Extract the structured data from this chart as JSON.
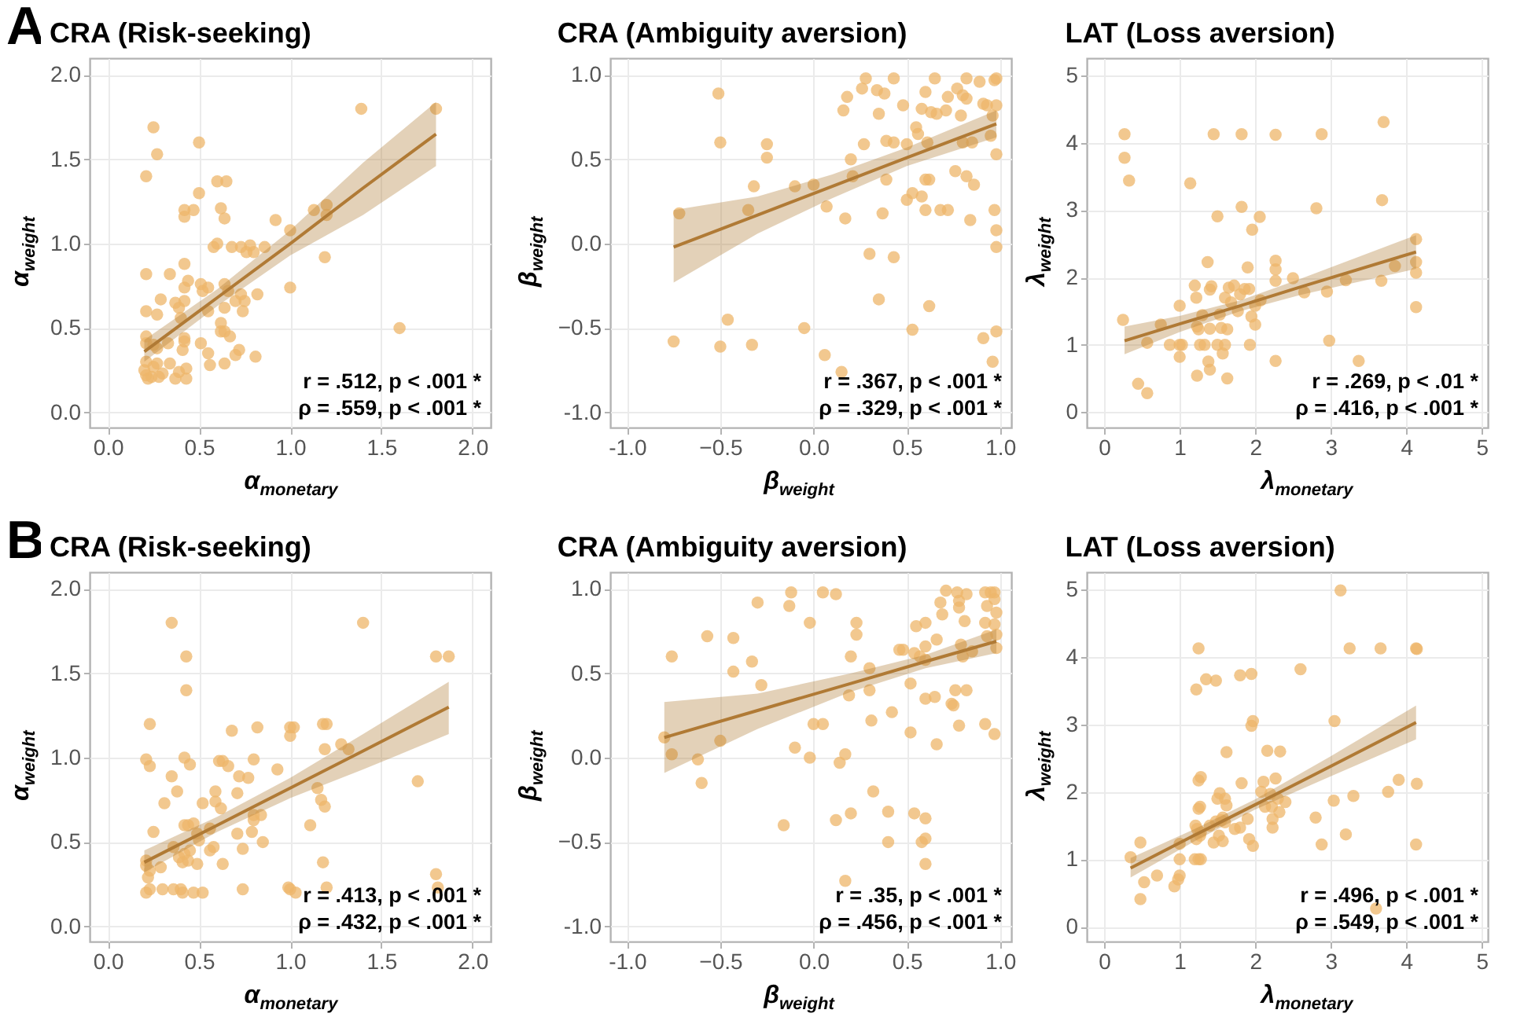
{
  "chart_data": [
    {
      "type": "scatter",
      "title": "CRA (Risk-seeking)",
      "xlabel": "α$_{monetary}$",
      "ylabel": "α$_{weight}$",
      "annotations": [
        "A",
        "r = .512, p < .001 *",
        "ρ = .559, p < .001 *"
      ],
      "xlim": [
        -0.1,
        2.1
      ],
      "ylim": [
        -0.09,
        2.1
      ],
      "xticks": [
        {
          "value": 0,
          "label": "0.0"
        },
        0.5,
        {
          "value": 1,
          "label": "1.0"
        },
        1.5,
        {
          "value": 2,
          "label": "2.0"
        }
      ],
      "yticks": [
        {
          "value": 0,
          "label": "0.0"
        },
        0.5,
        {
          "value": 1,
          "label": "1.0"
        },
        1.5,
        {
          "value": 2,
          "label": "2.0"
        }
      ],
      "grid": true,
      "marker": "circle",
      "series": [
        {
          "type": "scatter",
          "color": "#eeb56a",
          "x": [
            0.25,
            0.27,
            0.21,
            0.5,
            0.6,
            0.65,
            0.5,
            0.42,
            0.47,
            0.62,
            0.42,
            0.64,
            1.39,
            1.8,
            1.13,
            1.2,
            1.2,
            0.92,
            1.0,
            0.58,
            0.6,
            0.68,
            0.73,
            0.78,
            0.86,
            0.76,
            0.8,
            1.19,
            0.21,
            0.34,
            0.42,
            0.44,
            0.42,
            0.51,
            0.52,
            0.55,
            0.64,
            0.66,
            0.73,
            0.75,
            0.82,
            1.0,
            0.29,
            0.37,
            0.42,
            0.39,
            0.21,
            0.27,
            0.4,
            0.55,
            0.62,
            0.64,
            0.7,
            0.74,
            0.62,
            0.64,
            0.67,
            0.21,
            0.21,
            0.25,
            0.27,
            0.33,
            0.42,
            0.42,
            0.51,
            0.41,
            0.72,
            0.7,
            0.81,
            0.55,
            0.21,
            0.25,
            0.27,
            0.34,
            0.43,
            0.39,
            0.56,
            0.64,
            0.21,
            0.22,
            0.24,
            0.28,
            0.37,
            0.43,
            1.6,
            0.2,
            0.3
          ],
          "values": [
            1.69,
            1.53,
            1.4,
            1.6,
            1.37,
            1.37,
            1.3,
            1.2,
            1.2,
            1.21,
            1.16,
            1.15,
            1.8,
            1.8,
            1.2,
            1.23,
            1.17,
            1.14,
            1.08,
            0.98,
            1.0,
            0.98,
            0.98,
            0.99,
            0.98,
            0.95,
            0.95,
            0.92,
            0.82,
            0.82,
            0.88,
            0.78,
            0.74,
            0.76,
            0.72,
            0.74,
            0.76,
            0.72,
            0.7,
            0.66,
            0.7,
            0.74,
            0.67,
            0.65,
            0.66,
            0.62,
            0.6,
            0.58,
            0.56,
            0.6,
            0.53,
            0.62,
            0.66,
            0.6,
            0.48,
            0.48,
            0.45,
            0.45,
            0.41,
            0.4,
            0.38,
            0.41,
            0.44,
            0.42,
            0.41,
            0.37,
            0.37,
            0.34,
            0.33,
            0.35,
            0.3,
            0.27,
            0.29,
            0.29,
            0.26,
            0.24,
            0.28,
            0.29,
            0.22,
            0.2,
            0.21,
            0.21,
            0.2,
            0.2,
            0.5,
            0.25,
            0.23
          ]
        },
        {
          "type": "line",
          "color": "#b07a35",
          "marker": "none",
          "x": [
            0.2,
            0.6,
            1.0,
            1.4,
            1.8
          ],
          "values": [
            0.36,
            0.68,
            1.0,
            1.33,
            1.65
          ],
          "lower": [
            0.3,
            0.63,
            0.93,
            1.17,
            1.46
          ],
          "upper": [
            0.43,
            0.73,
            1.08,
            1.48,
            1.84
          ]
        }
      ]
    },
    {
      "type": "scatter",
      "title": "CRA (Ambiguity aversion)",
      "xlabel": "β$_{weight}$",
      "ylabel": "β$_{weight}$",
      "annotations": [
        "r = .367, p < .001 *",
        "ρ = .329, p < .001 *"
      ],
      "xlim": [
        -1.09,
        1.06
      ],
      "ylim": [
        -1.09,
        1.1
      ],
      "xticks": [
        {
          "value": -1,
          "label": "-1.0"
        },
        -0.5,
        {
          "value": 0,
          "label": "0.0"
        },
        0.5,
        {
          "value": 1,
          "label": "1.0"
        }
      ],
      "yticks": [
        {
          "value": -1,
          "label": "-1.0"
        },
        -0.5,
        {
          "value": 0,
          "label": "0.0"
        },
        0.5,
        {
          "value": 1,
          "label": "1.0"
        }
      ],
      "grid": true,
      "marker": "circle",
      "series": [
        {
          "type": "scatter",
          "color": "#eeb56a",
          "x": [
            -0.72,
            -0.75,
            -0.51,
            -0.5,
            -0.5,
            -0.46,
            -0.35,
            -0.32,
            -0.33,
            -0.25,
            -0.25,
            -0.1,
            -0.05,
            0.0,
            0.07,
            0.06,
            0.15,
            0.17,
            0.18,
            0.2,
            0.21,
            0.16,
            0.26,
            0.28,
            0.27,
            0.3,
            0.34,
            0.35,
            0.38,
            0.39,
            0.37,
            0.39,
            0.35,
            0.43,
            0.43,
            0.43,
            0.48,
            0.5,
            0.5,
            0.53,
            0.53,
            0.55,
            0.56,
            0.58,
            0.6,
            0.61,
            0.62,
            0.6,
            0.58,
            0.6,
            0.62,
            0.63,
            0.65,
            0.66,
            0.68,
            0.72,
            0.71,
            0.72,
            0.76,
            0.77,
            0.79,
            0.8,
            0.8,
            0.82,
            0.82,
            0.82,
            0.84,
            0.86,
            0.85,
            0.89,
            0.91,
            0.93,
            0.95,
            0.96,
            0.97,
            0.98,
            0.97,
            0.98,
            0.98,
            0.98,
            0.98,
            0.91,
            0.98,
            0.96
          ],
          "values": [
            0.18,
            -0.58,
            0.89,
            0.6,
            -0.61,
            -0.45,
            0.2,
            0.34,
            -0.6,
            0.59,
            0.51,
            0.34,
            -0.5,
            0.35,
            0.22,
            -0.66,
            -0.76,
            0.15,
            0.87,
            0.5,
            0.4,
            0.79,
            0.92,
            0.98,
            0.59,
            -0.06,
            0.91,
            0.77,
            0.89,
            0.61,
            0.18,
            0.38,
            -0.33,
            0.98,
            0.6,
            -0.08,
            0.82,
            0.59,
            0.26,
            0.3,
            -0.51,
            0.69,
            0.65,
            0.8,
            0.9,
            0.6,
            0.38,
            0.38,
            0.28,
            0.2,
            -0.37,
            0.78,
            0.98,
            0.77,
            0.2,
            0.2,
            0.79,
            0.87,
            0.43,
            0.92,
            0.76,
            0.88,
            0.6,
            0.98,
            0.86,
            0.4,
            0.14,
            0.35,
            0.6,
            0.96,
            0.83,
            0.82,
            0.64,
            0.76,
            0.97,
            0.98,
            0.2,
            0.08,
            -0.02,
            0.53,
            0.82,
            -0.56,
            -0.52,
            -0.7
          ]
        },
        {
          "type": "line",
          "color": "#b07a35",
          "marker": "none",
          "x": [
            -0.75,
            -0.3,
            0.1,
            0.5,
            0.98
          ],
          "values": [
            -0.02,
            0.17,
            0.34,
            0.51,
            0.71
          ],
          "lower": [
            -0.23,
            0.06,
            0.27,
            0.46,
            0.63
          ],
          "upper": [
            0.2,
            0.28,
            0.41,
            0.57,
            0.79
          ]
        }
      ]
    },
    {
      "type": "scatter",
      "title": "LAT (Loss aversion)",
      "xlabel": "λ$_{monetary}$",
      "ylabel": "λ$_{weight}$",
      "annotations": [
        "r = .269, p < .01 *",
        "ρ = .416, p < .001 *"
      ],
      "xlim": [
        -0.23,
        5.08
      ],
      "ylim": [
        -0.23,
        5.26
      ],
      "xticks": [
        0,
        1,
        2,
        3,
        4,
        5
      ],
      "yticks": [
        0,
        1,
        2,
        3,
        4,
        5
      ],
      "grid": true,
      "marker": "circle",
      "series": [
        {
          "type": "scatter",
          "color": "#eeb56a",
          "x": [
            0.27,
            0.27,
            0.33,
            1.45,
            1.82,
            2.27,
            2.88,
            3.7,
            1.14,
            1.5,
            1.82,
            2.06,
            2.81,
            3.68,
            1.96,
            0.25,
            0.57,
            0.75,
            0.87,
            1.0,
            1.0,
            1.03,
            1.0,
            1.2,
            1.22,
            1.23,
            1.25,
            1.27,
            1.3,
            1.33,
            1.37,
            1.4,
            1.42,
            1.4,
            1.38,
            1.4,
            1.23,
            1.5,
            1.55,
            1.53,
            1.6,
            1.57,
            1.63,
            1.65,
            1.68,
            1.72,
            1.77,
            1.8,
            1.86,
            1.9,
            1.92,
            1.95,
            1.93,
            2.0,
            2.0,
            2.07,
            2.27,
            2.27,
            2.27,
            2.27,
            2.5,
            2.65,
            2.95,
            2.98,
            3.2,
            3.37,
            3.67,
            3.85,
            4.13,
            4.13,
            4.13,
            4.13,
            0.45,
            0.57,
            1.63,
            1.6
          ],
          "values": [
            4.13,
            3.78,
            3.44,
            4.13,
            4.13,
            4.12,
            4.13,
            4.31,
            3.4,
            2.91,
            3.05,
            2.9,
            3.03,
            3.15,
            2.71,
            1.37,
            1.03,
            1.3,
            1.0,
            1.58,
            1.0,
            1.0,
            0.82,
            1.88,
            1.7,
            1.27,
            1.23,
            1.0,
            1.44,
            1.0,
            2.23,
            1.82,
            1.87,
            1.24,
            0.75,
            0.63,
            0.54,
            1.0,
            1.25,
            1.45,
            1.7,
            0.87,
            1.23,
            1.85,
            1.63,
            1.88,
            1.5,
            1.75,
            1.83,
            2.15,
            1.83,
            1.42,
            1.0,
            1.3,
            1.58,
            1.66,
            2.25,
            2.12,
            1.95,
            0.76,
            1.99,
            1.78,
            1.79,
            1.06,
            1.96,
            0.76,
            1.95,
            2.17,
            2.57,
            2.23,
            2.07,
            1.56,
            0.42,
            0.28,
            0.5,
            1.0
          ]
        },
        {
          "type": "line",
          "color": "#b07a35",
          "marker": "none",
          "x": [
            0.27,
            1.0,
            1.8,
            2.6,
            4.13
          ],
          "values": [
            1.06,
            1.31,
            1.58,
            1.86,
            2.38
          ],
          "lower": [
            0.86,
            1.19,
            1.5,
            1.74,
            2.13
          ],
          "upper": [
            1.27,
            1.43,
            1.66,
            1.98,
            2.63
          ]
        }
      ]
    },
    {
      "type": "scatter",
      "title": "CRA (Risk-seeking)",
      "xlabel": "α$_{monetary}$",
      "ylabel": "α$_{weight}$",
      "annotations": [
        "B",
        "r = .413, p < .001 *",
        "ρ = .432, p < .001 *"
      ],
      "xlim": [
        -0.1,
        2.1
      ],
      "ylim": [
        -0.09,
        2.1
      ],
      "xticks": [
        {
          "value": 0,
          "label": "0.0"
        },
        0.5,
        {
          "value": 1,
          "label": "1.0"
        },
        1.5,
        {
          "value": 2,
          "label": "2.0"
        }
      ],
      "yticks": [
        {
          "value": 0,
          "label": "0.0"
        },
        0.5,
        {
          "value": 1,
          "label": "1.0"
        },
        1.5,
        {
          "value": 2,
          "label": "2.0"
        }
      ],
      "grid": true,
      "marker": "circle",
      "series": [
        {
          "type": "scatter",
          "color": "#eeb56a",
          "x": [
            0.35,
            1.4,
            0.43,
            1.8,
            1.87,
            0.43,
            0.23,
            0.68,
            0.82,
            1.0,
            1.02,
            1.18,
            1.2,
            1.0,
            1.28,
            1.32,
            1.19,
            0.21,
            0.23,
            0.42,
            0.45,
            0.61,
            0.63,
            0.66,
            0.8,
            0.93,
            0.35,
            0.72,
            0.77,
            0.38,
            0.31,
            0.52,
            0.59,
            0.59,
            0.62,
            0.71,
            0.8,
            0.8,
            0.84,
            1.15,
            1.17,
            1.19,
            1.7,
            0.25,
            0.42,
            0.44,
            0.47,
            0.49,
            0.56,
            0.71,
            0.79,
            1.11,
            0.36,
            0.39,
            0.42,
            0.41,
            0.44,
            0.45,
            0.5,
            0.56,
            0.58,
            0.74,
            0.85,
            0.63,
            0.49,
            0.21,
            0.21,
            0.22,
            0.23,
            0.29,
            1.18,
            1.8,
            0.21,
            0.23,
            0.3,
            0.36,
            0.41,
            0.4,
            0.47,
            0.52,
            0.74,
            0.99,
            1.0,
            1.03,
            1.2,
            1.81
          ],
          "values": [
            1.8,
            1.8,
            1.6,
            1.6,
            1.6,
            1.4,
            1.2,
            1.16,
            1.18,
            1.18,
            1.18,
            1.2,
            1.2,
            1.13,
            1.08,
            1.05,
            1.05,
            0.99,
            0.95,
            1.0,
            0.96,
            0.98,
            0.98,
            0.95,
            0.99,
            0.93,
            0.89,
            0.89,
            0.88,
            0.8,
            0.73,
            0.73,
            0.8,
            0.74,
            0.7,
            0.79,
            0.66,
            0.63,
            0.66,
            0.82,
            0.75,
            0.71,
            0.86,
            0.56,
            0.6,
            0.6,
            0.61,
            0.55,
            0.58,
            0.55,
            0.56,
            0.6,
            0.47,
            0.41,
            0.43,
            0.38,
            0.39,
            0.45,
            0.51,
            0.45,
            0.47,
            0.46,
            0.5,
            0.37,
            0.37,
            0.39,
            0.36,
            0.29,
            0.33,
            0.35,
            0.38,
            0.31,
            0.2,
            0.22,
            0.22,
            0.22,
            0.2,
            0.22,
            0.2,
            0.2,
            0.22,
            0.23,
            0.22,
            0.2,
            0.23,
            0.23
          ]
        },
        {
          "type": "line",
          "color": "#b07a35",
          "marker": "none",
          "x": [
            0.2,
            0.6,
            1.0,
            1.4,
            1.87
          ],
          "values": [
            0.38,
            0.6,
            0.82,
            1.04,
            1.3
          ],
          "lower": [
            0.32,
            0.56,
            0.76,
            0.93,
            1.14
          ],
          "upper": [
            0.45,
            0.65,
            0.88,
            1.14,
            1.45
          ]
        }
      ]
    },
    {
      "type": "scatter",
      "title": "CRA (Ambiguity aversion)",
      "xlabel": "β$_{weight}$",
      "ylabel": "β$_{weight}$",
      "annotations": [
        "r = .35, p < .001 *",
        "ρ = .456, p < .001 *"
      ],
      "xlim": [
        -1.09,
        1.06
      ],
      "ylim": [
        -1.09,
        1.1
      ],
      "xticks": [
        {
          "value": -1,
          "label": "-1.0"
        },
        -0.5,
        {
          "value": 0,
          "label": "0.0"
        },
        0.5,
        {
          "value": 1,
          "label": "1.0"
        }
      ],
      "yticks": [
        {
          "value": -1,
          "label": "-1.0"
        },
        -0.5,
        {
          "value": 0,
          "label": "0.0"
        },
        0.5,
        {
          "value": 1,
          "label": "1.0"
        }
      ],
      "grid": true,
      "marker": "circle",
      "series": [
        {
          "type": "scatter",
          "color": "#eeb56a",
          "x": [
            -0.76,
            -0.8,
            -0.76,
            -0.62,
            -0.6,
            -0.57,
            -0.5,
            -0.43,
            -0.43,
            -0.33,
            -0.3,
            -0.28,
            -0.16,
            -0.13,
            -0.12,
            -0.1,
            -0.02,
            -0.02,
            0.0,
            0.05,
            0.05,
            0.12,
            0.12,
            0.14,
            0.17,
            0.17,
            0.2,
            0.19,
            0.2,
            0.23,
            0.23,
            0.3,
            0.3,
            0.31,
            0.32,
            0.4,
            0.4,
            0.42,
            0.46,
            0.48,
            0.52,
            0.52,
            0.54,
            0.54,
            0.55,
            0.57,
            0.58,
            0.6,
            0.6,
            0.6,
            0.6,
            0.6,
            0.6,
            0.6,
            0.65,
            0.66,
            0.66,
            0.68,
            0.69,
            0.71,
            0.77,
            0.74,
            0.75,
            0.78,
            0.78,
            0.76,
            0.82,
            0.78,
            0.79,
            0.8,
            0.81,
            0.82,
            0.85,
            0.92,
            0.92,
            0.93,
            0.93,
            0.92,
            0.95,
            0.97,
            0.97,
            0.98,
            0.97,
            0.98,
            0.98,
            0.97
          ],
          "values": [
            0.6,
            0.12,
            0.02,
            -0.01,
            -0.15,
            0.72,
            0.1,
            0.71,
            0.51,
            0.57,
            0.92,
            0.43,
            -0.4,
            0.9,
            0.98,
            0.06,
            0.8,
            0.0,
            0.2,
            0.98,
            0.2,
            0.97,
            -0.37,
            -0.03,
            0.02,
            -0.73,
            0.6,
            0.37,
            -0.33,
            0.8,
            0.73,
            0.53,
            0.4,
            0.22,
            -0.2,
            -0.32,
            -0.5,
            0.27,
            0.64,
            0.64,
            0.44,
            0.15,
            0.62,
            -0.33,
            0.78,
            0.6,
            -0.5,
            0.8,
            0.66,
            0.58,
            0.35,
            -0.36,
            -0.48,
            -0.63,
            0.36,
            0.7,
            0.08,
            0.92,
            0.85,
            0.99,
            0.98,
            0.32,
            0.31,
            0.93,
            0.89,
            0.4,
            0.4,
            0.19,
            0.67,
            0.6,
            0.81,
            0.97,
            0.63,
            0.98,
            0.8,
            0.9,
            0.72,
            0.2,
            0.98,
            0.98,
            0.94,
            0.86,
            0.79,
            0.73,
            0.65,
            0.14
          ]
        },
        {
          "type": "line",
          "color": "#b07a35",
          "marker": "none",
          "x": [
            -0.8,
            -0.3,
            0.2,
            0.6,
            0.98
          ],
          "values": [
            0.12,
            0.28,
            0.44,
            0.57,
            0.69
          ],
          "lower": [
            -0.09,
            0.17,
            0.39,
            0.53,
            0.62
          ],
          "upper": [
            0.33,
            0.38,
            0.5,
            0.61,
            0.76
          ]
        }
      ]
    },
    {
      "type": "scatter",
      "title": "LAT (Loss aversion)",
      "xlabel": "λ$_{monetary}$",
      "ylabel": "λ$_{weight}$",
      "annotations": [
        "r = .496, p < .001 *",
        "ρ = .549, p < .001 *"
      ],
      "xlim": [
        -0.23,
        5.08
      ],
      "ylim": [
        -0.22,
        5.26
      ],
      "xticks": [
        0,
        1,
        2,
        3,
        4,
        5
      ],
      "yticks": [
        0,
        1,
        2,
        3,
        4,
        5
      ],
      "grid": true,
      "marker": "circle",
      "series": [
        {
          "type": "scatter",
          "color": "#eeb56a",
          "x": [
            3.13,
            1.25,
            3.25,
            3.66,
            4.13,
            4.14,
            1.22,
            1.35,
            1.48,
            1.8,
            1.95,
            2.6,
            1.95,
            1.97,
            3.05,
            1.62,
            2.16,
            2.33,
            1.25,
            1.28,
            1.82,
            2.08,
            2.11,
            2.27,
            3.9,
            4.14,
            1.27,
            1.25,
            1.5,
            1.53,
            1.6,
            1.62,
            2.13,
            2.2,
            2.22,
            2.3,
            2.4,
            2.32,
            3.04,
            3.3,
            3.76,
            1.21,
            1.23,
            1.28,
            1.4,
            1.48,
            1.55,
            1.57,
            1.6,
            1.73,
            1.8,
            1.9,
            2.23,
            2.23,
            2.8,
            3.2,
            1.22,
            1.27,
            1.45,
            1.52,
            1.57,
            1.92,
            1.97,
            2.88,
            4.13,
            0.35,
            0.48,
            1.0,
            1.0,
            1.2,
            1.25,
            1.28,
            0.53,
            0.7,
            1.0,
            0.98,
            0.93,
            0.48,
            3.6
          ],
          "values": [
            4.99,
            4.13,
            4.13,
            4.13,
            4.13,
            4.12,
            3.52,
            3.67,
            3.65,
            3.73,
            3.75,
            3.82,
            2.98,
            3.05,
            3.05,
            2.59,
            2.61,
            2.6,
            2.17,
            2.22,
            2.13,
            2.0,
            2.15,
            2.2,
            2.18,
            2.12,
            1.78,
            1.75,
            1.9,
            1.98,
            1.9,
            1.8,
            1.78,
            1.97,
            1.78,
            1.9,
            1.85,
            1.7,
            1.87,
            1.94,
            2.0,
            1.5,
            1.45,
            1.4,
            1.5,
            1.56,
            1.58,
            1.62,
            1.55,
            1.45,
            1.47,
            1.6,
            1.6,
            1.47,
            1.62,
            1.37,
            1.3,
            1.35,
            1.25,
            1.35,
            1.27,
            1.3,
            1.2,
            1.22,
            1.22,
            1.03,
            1.25,
            1.23,
            1.0,
            1.0,
            1.0,
            1.0,
            0.66,
            0.76,
            0.76,
            0.7,
            0.6,
            0.41,
            0.27
          ]
        },
        {
          "type": "line",
          "color": "#b07a35",
          "marker": "none",
          "x": [
            0.35,
            1.2,
            2.0,
            3.0,
            4.13
          ],
          "values": [
            0.87,
            1.36,
            1.81,
            2.38,
            3.03
          ],
          "lower": [
            0.73,
            1.27,
            1.74,
            2.23,
            2.78
          ],
          "upper": [
            1.02,
            1.45,
            1.89,
            2.53,
            3.28
          ]
        }
      ]
    }
  ]
}
